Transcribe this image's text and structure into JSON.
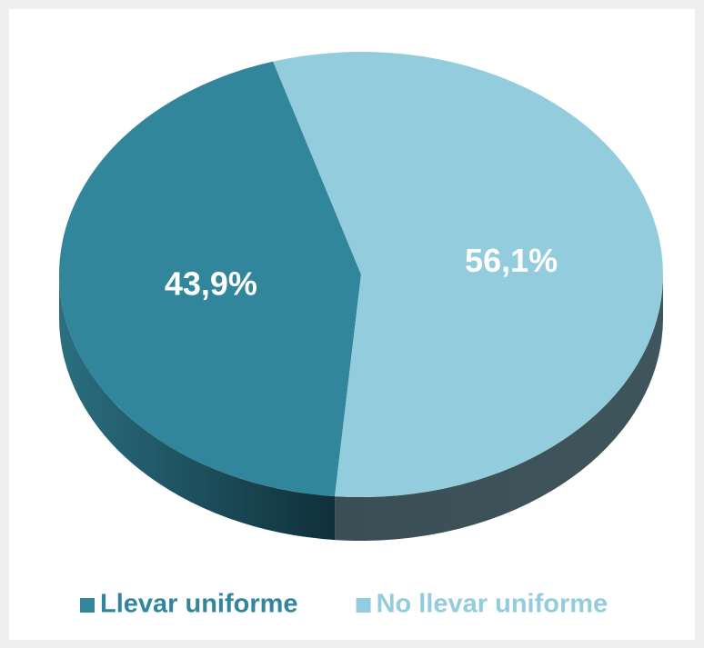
{
  "chart_data": {
    "type": "pie",
    "three_d": true,
    "categories": [
      "Llevar uniforme",
      "No llevar uniforme"
    ],
    "values": [
      43.9,
      56.1
    ],
    "value_labels": [
      "43,9%",
      "56,1%"
    ],
    "colors": [
      "#31869b",
      "#93cddd"
    ],
    "legend": "bottom"
  }
}
